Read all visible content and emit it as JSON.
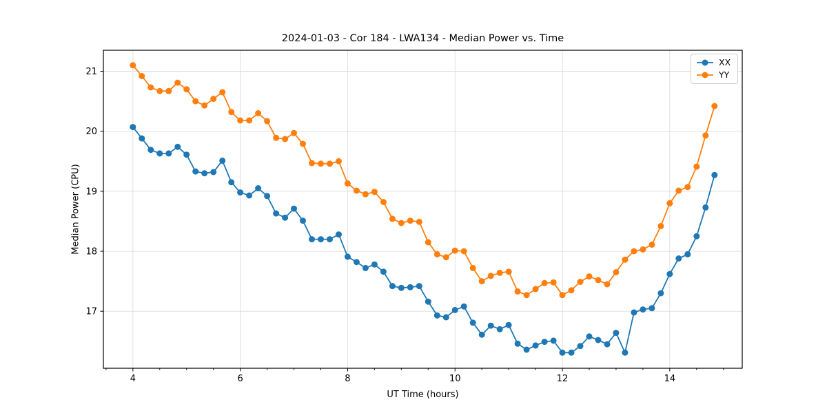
{
  "chart_data": {
    "type": "line",
    "title": "2024-01-03 - Cor 184 - LWA134 - Median Power vs. Time",
    "xlabel": "UT Time (hours)",
    "ylabel": "Median Power (CPU)",
    "x_start": 4.0,
    "x_step_hours": 0.1666667,
    "xlim": [
      3.45,
      15.35
    ],
    "ylim": [
      16.05,
      21.35
    ],
    "x_ticks": [
      4,
      6,
      8,
      10,
      12,
      14
    ],
    "x_minor_tick_step": 0.5,
    "y_ticks": [
      17,
      18,
      19,
      20,
      21
    ],
    "grid": true,
    "grid_color": "#dcdcdc",
    "legend_position": "upper right",
    "series": [
      {
        "name": "XX",
        "color": "#1f77b4",
        "values": [
          20.07,
          19.88,
          19.69,
          19.63,
          19.63,
          19.74,
          19.61,
          19.33,
          19.3,
          19.32,
          19.51,
          19.15,
          18.98,
          18.93,
          19.05,
          18.92,
          18.63,
          18.56,
          18.71,
          18.51,
          18.2,
          18.2,
          18.2,
          18.28,
          17.91,
          17.82,
          17.72,
          17.78,
          17.66,
          17.42,
          17.39,
          17.4,
          17.42,
          17.16,
          16.93,
          16.9,
          17.02,
          17.08,
          16.81,
          16.61,
          16.76,
          16.7,
          16.77,
          16.46,
          16.36,
          16.43,
          16.49,
          16.51,
          16.31,
          16.31,
          16.42,
          16.58,
          16.52,
          16.45,
          16.64,
          16.31,
          16.98,
          17.03,
          17.05,
          17.3,
          17.62,
          17.88,
          17.95,
          18.25,
          18.73,
          19.27
        ]
      },
      {
        "name": "YY",
        "color": "#ff7f0e",
        "values": [
          21.1,
          20.92,
          20.73,
          20.67,
          20.67,
          20.81,
          20.7,
          20.5,
          20.43,
          20.54,
          20.65,
          20.32,
          20.18,
          20.18,
          20.3,
          20.17,
          19.89,
          19.87,
          19.97,
          19.79,
          19.47,
          19.46,
          19.46,
          19.5,
          19.13,
          19.01,
          18.95,
          18.99,
          18.82,
          18.54,
          18.47,
          18.51,
          18.49,
          18.15,
          17.95,
          17.9,
          18.01,
          18.0,
          17.72,
          17.5,
          17.59,
          17.64,
          17.66,
          17.33,
          17.27,
          17.37,
          17.47,
          17.48,
          17.27,
          17.35,
          17.49,
          17.58,
          17.52,
          17.45,
          17.65,
          17.86,
          18.0,
          18.03,
          18.11,
          18.42,
          18.8,
          19.01,
          19.07,
          19.41,
          19.93,
          20.42
        ]
      }
    ]
  }
}
